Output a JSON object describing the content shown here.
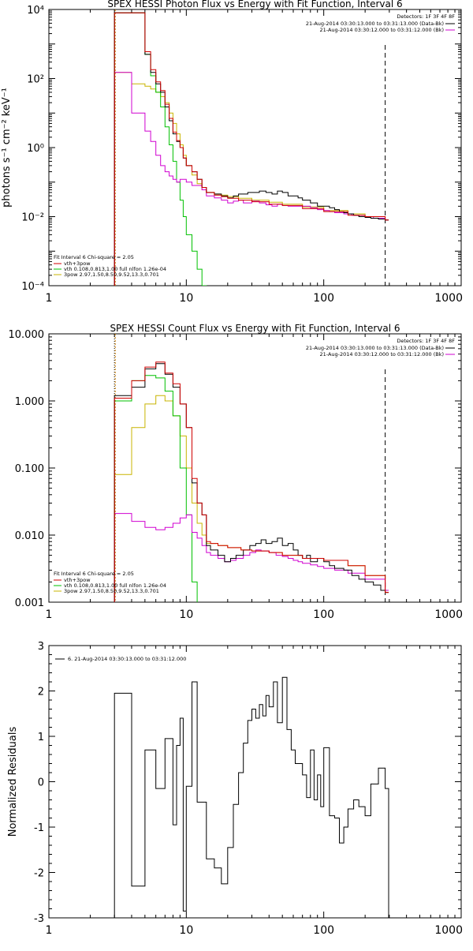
{
  "chart_data": [
    {
      "type": "line",
      "title": "SPEX HESSI Photon Flux vs Energy with Fit Function, Interval 6",
      "ylabel": "photons s⁻¹ cm⁻² keV⁻¹",
      "xscale": "log",
      "yscale": "log",
      "xlim": [
        1,
        1000
      ],
      "ylim": [
        0.0001,
        10000
      ],
      "xticks": [
        1,
        10,
        100,
        1000
      ],
      "xtick_labels": [
        "1",
        "10",
        "100",
        "1000"
      ],
      "yticks": [
        0.0001,
        0.01,
        1,
        100,
        10000
      ],
      "ytick_labels": [
        "10⁻⁴",
        "10⁻²",
        "10⁰",
        "10²",
        "10⁴"
      ],
      "fit_vlines": [
        3,
        280
      ],
      "legend_top_right": {
        "header": "Detectors: 1F 3F 4F 8F",
        "entries": [
          {
            "label": "21-Aug-2014 03:30:13.000 to 03:31:13.000 (Data-Bk)",
            "color": "#000000"
          },
          {
            "label": "21-Aug-2014 03:30:12.000 to 03:31:12.000 (Bk)",
            "color": "#d000d0"
          }
        ]
      },
      "legend_bottom_left": {
        "header": "Fit Interval 6    Chi-square = 2.05",
        "entries": [
          {
            "label": "vth+3pow",
            "color": "#d00000"
          },
          {
            "label": "vth 0.108,0.813,1.00  full nlfon 1.26e-04",
            "color": "#00c000"
          },
          {
            "label": "3pow 2.97,1.50,8.50,9.52,13.3,0.701",
            "color": "#c8b400"
          }
        ]
      },
      "series": [
        {
          "color": "#000000",
          "x": [
            3,
            4,
            5,
            5.5,
            6,
            6.5,
            7,
            7.5,
            8,
            8.5,
            9,
            9.5,
            10,
            11,
            12,
            13,
            14,
            16,
            18,
            20,
            22,
            24,
            26,
            28,
            30,
            34,
            38,
            42,
            46,
            50,
            55,
            60,
            65,
            70,
            80,
            90,
            100,
            110,
            120,
            130,
            140,
            150,
            165,
            180,
            200,
            220,
            250,
            280
          ],
          "y": [
            8000,
            8000,
            500,
            150,
            70,
            40,
            15,
            6,
            2.5,
            1.5,
            1.0,
            0.5,
            0.3,
            0.2,
            0.12,
            0.07,
            0.05,
            0.045,
            0.04,
            0.035,
            0.04,
            0.045,
            0.045,
            0.05,
            0.05,
            0.055,
            0.05,
            0.045,
            0.055,
            0.05,
            0.04,
            0.04,
            0.035,
            0.03,
            0.025,
            0.02,
            0.02,
            0.018,
            0.016,
            0.014,
            0.013,
            0.012,
            0.011,
            0.01,
            0.0095,
            0.009,
            0.0085,
            0.008
          ]
        },
        {
          "color": "#d00000",
          "x": [
            3,
            4,
            5,
            5.5,
            6,
            6.5,
            7,
            7.5,
            8,
            8.5,
            9,
            9.5,
            10,
            11,
            12,
            13,
            14,
            16,
            18,
            20,
            24,
            30,
            40,
            50,
            70,
            100,
            150,
            200,
            280
          ],
          "y": [
            8000,
            8000,
            600,
            180,
            80,
            45,
            18,
            7,
            2.8,
            1.6,
            1.0,
            0.5,
            0.3,
            0.2,
            0.12,
            0.07,
            0.05,
            0.042,
            0.038,
            0.034,
            0.03,
            0.027,
            0.023,
            0.021,
            0.017,
            0.014,
            0.011,
            0.01,
            0.008
          ]
        },
        {
          "color": "#00c000",
          "x": [
            3,
            4,
            5,
            5.5,
            6,
            6.5,
            7,
            7.5,
            8,
            8.5,
            9,
            9.5,
            10,
            11,
            12,
            13,
            14
          ],
          "y": [
            8000,
            8000,
            500,
            120,
            40,
            15,
            4,
            1.2,
            0.4,
            0.1,
            0.03,
            0.01,
            0.003,
            0.001,
            0.0003,
            0.0001,
            5e-05
          ]
        },
        {
          "color": "#c8b400",
          "x": [
            3,
            4,
            5,
            5.5,
            6,
            6.5,
            7,
            7.5,
            8,
            8.5,
            9,
            9.5,
            10,
            11,
            12,
            13,
            14,
            16,
            18,
            20,
            24,
            30,
            40,
            50,
            70,
            100,
            150,
            200,
            280
          ],
          "y": [
            150,
            70,
            60,
            50,
            40,
            30,
            20,
            10,
            5,
            2.5,
            1.2,
            0.6,
            0.3,
            0.16,
            0.09,
            0.06,
            0.05,
            0.045,
            0.042,
            0.038,
            0.034,
            0.03,
            0.026,
            0.023,
            0.019,
            0.015,
            0.012,
            0.01,
            0.008
          ]
        },
        {
          "color": "#d000d0",
          "x": [
            3,
            4,
            5,
            5.5,
            6,
            6.5,
            7,
            7.5,
            8,
            8.5,
            9,
            9.5,
            10,
            11,
            12,
            13,
            14,
            16,
            18,
            20,
            22,
            24,
            26,
            28,
            30,
            34,
            38,
            42,
            46,
            50,
            55,
            60,
            65,
            70,
            80,
            90,
            100,
            110,
            120,
            140,
            160,
            180,
            200,
            230,
            280
          ],
          "y": [
            150,
            10,
            3,
            1.5,
            0.6,
            0.3,
            0.2,
            0.15,
            0.12,
            0.1,
            0.12,
            0.12,
            0.1,
            0.08,
            0.08,
            0.06,
            0.04,
            0.035,
            0.03,
            0.025,
            0.028,
            0.03,
            0.025,
            0.025,
            0.028,
            0.025,
            0.022,
            0.02,
            0.023,
            0.021,
            0.02,
            0.02,
            0.02,
            0.02,
            0.018,
            0.016,
            0.015,
            0.014,
            0.013,
            0.012,
            0.011,
            0.011,
            0.01,
            0.009,
            0.008
          ]
        }
      ]
    },
    {
      "type": "line",
      "title": "SPEX HESSI Count Flux vs Energy with Fit Function, Interval 6",
      "ylabel": "",
      "xscale": "log",
      "yscale": "log",
      "xlim": [
        1,
        1000
      ],
      "ylim": [
        0.001,
        10
      ],
      "xticks": [
        1,
        10,
        100,
        1000
      ],
      "xtick_labels": [
        "1",
        "10",
        "100",
        "1000"
      ],
      "yticks": [
        0.001,
        0.01,
        0.1,
        1,
        10
      ],
      "ytick_labels": [
        "0.001",
        "0.010",
        "0.100",
        "1.000",
        "10.000"
      ],
      "fit_vlines": [
        3,
        280
      ],
      "legend_top_right": {
        "header": "Detectors: 1F 3F 4F 8F",
        "entries": [
          {
            "label": "21-Aug-2014 03:30:13.000 to 03:31:13.000 (Data-Bk)",
            "color": "#000000"
          },
          {
            "label": "21-Aug-2014 03:30:12.000 to 03:31:12.000 (Bk)",
            "color": "#d000d0"
          }
        ]
      },
      "legend_bottom_left": {
        "header": "Fit Interval 6    Chi-square = 2.05",
        "entries": [
          {
            "label": "vth+3pow",
            "color": "#d00000"
          },
          {
            "label": "vth 0.108,0.813,1.00  full nlfon 1.26e-04",
            "color": "#00c000"
          },
          {
            "label": "3pow 2.97,1.50,8.50,9.52,13.3,0.701",
            "color": "#c8b400"
          }
        ]
      },
      "series": [
        {
          "color": "#000000",
          "x": [
            3,
            4,
            5,
            6,
            7,
            8,
            9,
            10,
            11,
            12,
            13,
            14,
            15,
            17,
            19,
            21,
            23,
            26,
            29,
            32,
            35,
            38,
            42,
            46,
            50,
            55,
            60,
            65,
            70,
            75,
            80,
            90,
            100,
            110,
            120,
            140,
            160,
            180,
            200,
            230,
            260,
            280
          ],
          "y": [
            1.2,
            1.6,
            3.0,
            3.6,
            2.5,
            1.6,
            0.9,
            0.4,
            0.06,
            0.03,
            0.02,
            0.007,
            0.006,
            0.005,
            0.004,
            0.0045,
            0.005,
            0.006,
            0.007,
            0.0075,
            0.0085,
            0.0075,
            0.008,
            0.009,
            0.007,
            0.0075,
            0.006,
            0.005,
            0.0045,
            0.005,
            0.004,
            0.0045,
            0.004,
            0.0035,
            0.0032,
            0.003,
            0.0025,
            0.0022,
            0.002,
            0.0018,
            0.0015,
            0.0014
          ]
        },
        {
          "color": "#d00000",
          "x": [
            3,
            4,
            5,
            6,
            7,
            8,
            9,
            10,
            11,
            12,
            13,
            14,
            15,
            17,
            20,
            25,
            30,
            40,
            50,
            70,
            100,
            150,
            200,
            280
          ],
          "y": [
            1.1,
            2.0,
            3.2,
            3.8,
            2.6,
            1.8,
            0.9,
            0.4,
            0.07,
            0.03,
            0.02,
            0.008,
            0.0075,
            0.007,
            0.0065,
            0.006,
            0.0058,
            0.0055,
            0.005,
            0.0045,
            0.0042,
            0.0035,
            0.0025,
            0.0014
          ]
        },
        {
          "color": "#00c000",
          "x": [
            3,
            4,
            5,
            6,
            7,
            8,
            9,
            10,
            11,
            12
          ],
          "y": [
            1.0,
            2.0,
            2.4,
            2.2,
            1.4,
            0.6,
            0.1,
            0.02,
            0.002,
            0.0005
          ]
        },
        {
          "color": "#c8b400",
          "x": [
            3,
            4,
            5,
            6,
            7,
            8,
            9,
            10,
            11,
            12,
            13,
            14,
            15,
            17,
            20,
            25,
            30,
            40,
            50,
            70,
            100,
            150,
            200,
            280
          ],
          "y": [
            0.08,
            0.4,
            0.9,
            1.2,
            1.0,
            0.6,
            0.3,
            0.1,
            0.03,
            0.015,
            0.01,
            0.0075,
            0.0075,
            0.007,
            0.0065,
            0.006,
            0.0058,
            0.0055,
            0.005,
            0.0045,
            0.0042,
            0.0035,
            0.0025,
            0.0014
          ]
        },
        {
          "color": "#d000d0",
          "x": [
            3,
            4,
            5,
            6,
            7,
            8,
            9,
            10,
            11,
            12,
            13,
            14,
            15,
            17,
            19,
            21,
            23,
            26,
            29,
            32,
            35,
            40,
            45,
            50,
            55,
            60,
            65,
            70,
            80,
            90,
            100,
            120,
            150,
            200,
            280
          ],
          "y": [
            0.021,
            0.016,
            0.013,
            0.012,
            0.013,
            0.015,
            0.018,
            0.02,
            0.011,
            0.009,
            0.007,
            0.0055,
            0.005,
            0.0045,
            0.004,
            0.0042,
            0.0045,
            0.005,
            0.0055,
            0.006,
            0.0058,
            0.0055,
            0.005,
            0.0048,
            0.0045,
            0.0042,
            0.004,
            0.0038,
            0.0036,
            0.0034,
            0.0032,
            0.003,
            0.0027,
            0.0022,
            0.0015
          ]
        }
      ]
    },
    {
      "type": "line",
      "title": "",
      "ylabel": "Normalized Residuals",
      "xscale": "log",
      "yscale": "linear",
      "xlim": [
        1,
        1000
      ],
      "ylim": [
        -3,
        3
      ],
      "xticks": [
        1,
        10,
        100,
        1000
      ],
      "xtick_labels": [
        "1",
        "10",
        "100",
        "1000"
      ],
      "yticks": [
        -3,
        -2,
        -1,
        0,
        1,
        2,
        3
      ],
      "ytick_labels": [
        "-3",
        "-2",
        "-1",
        "0",
        "1",
        "2",
        "3"
      ],
      "legend_top_left": {
        "entries": [
          {
            "label": "6. 21-Aug-2014 03:30:13.000 to 03:31:12.000",
            "color": "#000000"
          }
        ]
      },
      "series": [
        {
          "color": "#000000",
          "x": [
            3,
            4,
            5,
            5.5,
            6,
            6.5,
            7,
            7.5,
            8,
            8.5,
            9,
            9.5,
            10,
            11,
            12,
            13,
            14,
            15,
            16,
            18,
            20,
            22,
            24,
            26,
            28,
            30,
            32,
            34,
            36,
            38,
            40,
            43,
            46,
            50,
            54,
            58,
            62,
            66,
            70,
            75,
            80,
            85,
            90,
            95,
            100,
            110,
            120,
            130,
            140,
            150,
            165,
            180,
            200,
            220,
            250,
            280
          ],
          "y": [
            1.95,
            -2.3,
            0.7,
            0.7,
            -0.15,
            -0.15,
            0.95,
            0.95,
            -0.95,
            0.8,
            1.4,
            -2.85,
            -0.1,
            2.2,
            -0.45,
            -0.45,
            -1.7,
            -1.7,
            -1.9,
            -2.25,
            -1.45,
            -0.5,
            0.2,
            0.85,
            1.35,
            1.6,
            1.4,
            1.7,
            1.45,
            1.9,
            1.65,
            2.2,
            1.3,
            2.3,
            1.15,
            0.7,
            0.4,
            0.4,
            0.15,
            -0.35,
            0.7,
            -0.4,
            0.15,
            -0.55,
            0.75,
            -0.75,
            -0.8,
            -1.35,
            -1.0,
            -0.6,
            -0.4,
            -0.55,
            -0.75,
            -0.05,
            0.3,
            -0.15
          ]
        }
      ]
    }
  ]
}
